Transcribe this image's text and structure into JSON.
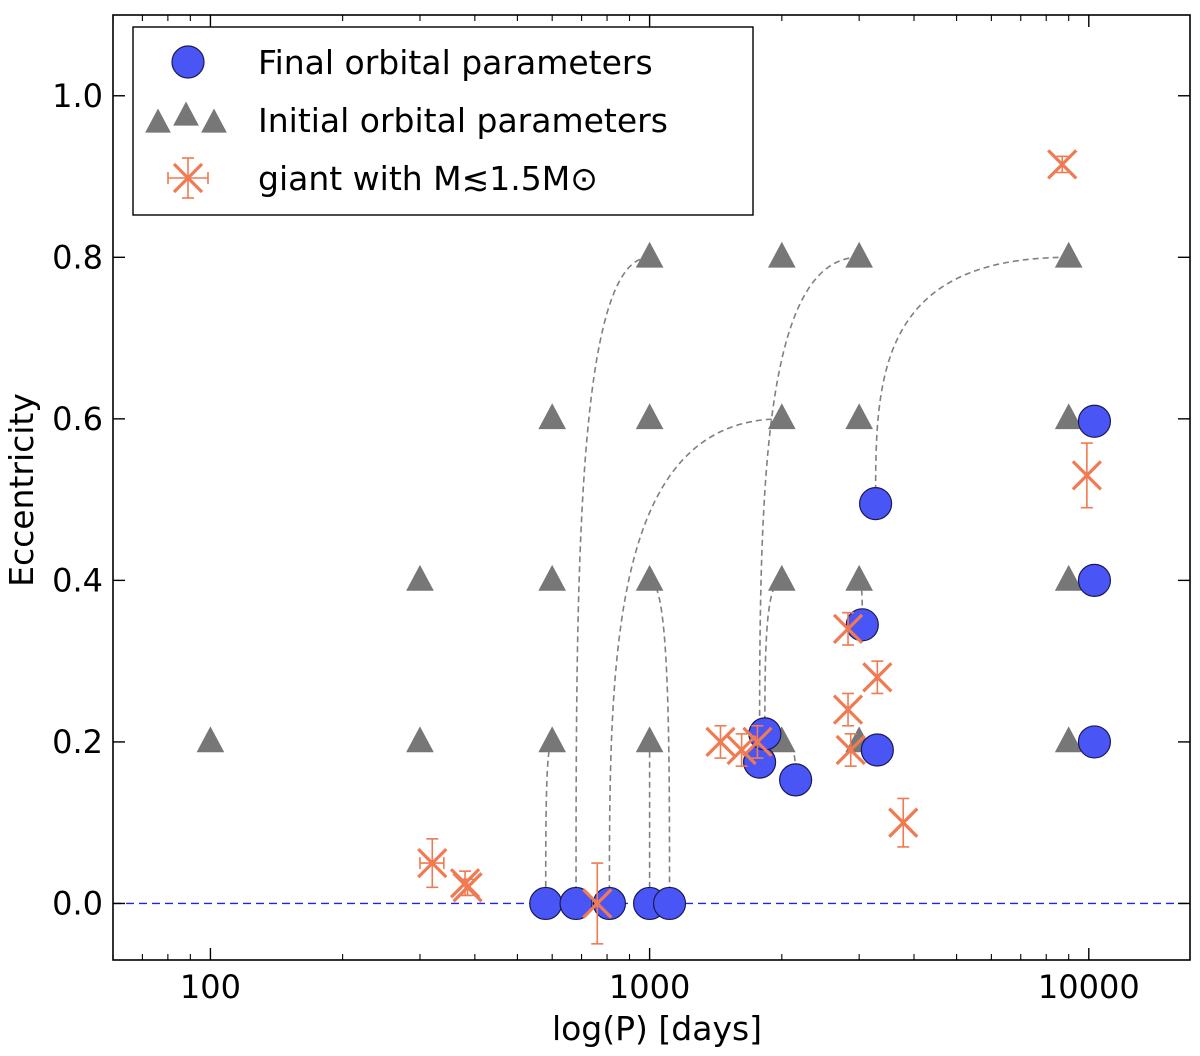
{
  "chart_data": {
    "type": "scatter",
    "title": "",
    "xlabel": "log(P) [days]",
    "ylabel": "Eccentricity",
    "xscale": "log",
    "xlim": [
      60,
      17000
    ],
    "ylim": [
      -0.07,
      1.1
    ],
    "grid": false,
    "legend_position": "top-left",
    "x_ticks": [
      {
        "value": 100,
        "label": "100"
      },
      {
        "value": 1000,
        "label": "1000"
      },
      {
        "value": 10000,
        "label": "10000"
      }
    ],
    "y_ticks": [
      {
        "value": 0.0,
        "label": "0.0"
      },
      {
        "value": 0.2,
        "label": "0.2"
      },
      {
        "value": 0.4,
        "label": "0.4"
      },
      {
        "value": 0.6,
        "label": "0.6"
      },
      {
        "value": 0.8,
        "label": "0.8"
      },
      {
        "value": 1.0,
        "label": "1.0"
      }
    ],
    "reference_line": {
      "y": 0.0,
      "style": "dashed",
      "color": "#2222ee"
    },
    "series": [
      {
        "name": "Final orbital parameters",
        "marker": "circle",
        "color": "#4a55f5",
        "points": [
          {
            "x": 580,
            "y": 0.0
          },
          {
            "x": 680,
            "y": 0.0
          },
          {
            "x": 810,
            "y": 0.0
          },
          {
            "x": 1000,
            "y": 0.0
          },
          {
            "x": 1110,
            "y": 0.0
          },
          {
            "x": 1780,
            "y": 0.175
          },
          {
            "x": 1830,
            "y": 0.21
          },
          {
            "x": 2150,
            "y": 0.153
          },
          {
            "x": 3050,
            "y": 0.345
          },
          {
            "x": 3300,
            "y": 0.19
          },
          {
            "x": 3270,
            "y": 0.495
          },
          {
            "x": 10300,
            "y": 0.597
          },
          {
            "x": 10300,
            "y": 0.4
          },
          {
            "x": 10300,
            "y": 0.2
          }
        ]
      },
      {
        "name": "Initial orbital parameters",
        "marker": "triangle",
        "color": "#777777",
        "points": [
          {
            "x": 100,
            "y": 0.2
          },
          {
            "x": 300,
            "y": 0.2
          },
          {
            "x": 300,
            "y": 0.4
          },
          {
            "x": 600,
            "y": 0.2
          },
          {
            "x": 600,
            "y": 0.4
          },
          {
            "x": 600,
            "y": 0.6
          },
          {
            "x": 1000,
            "y": 0.2
          },
          {
            "x": 1000,
            "y": 0.4
          },
          {
            "x": 1000,
            "y": 0.6
          },
          {
            "x": 1000,
            "y": 0.8
          },
          {
            "x": 2000,
            "y": 0.2
          },
          {
            "x": 2000,
            "y": 0.4
          },
          {
            "x": 2000,
            "y": 0.6
          },
          {
            "x": 2000,
            "y": 0.8
          },
          {
            "x": 3000,
            "y": 0.2
          },
          {
            "x": 3000,
            "y": 0.4
          },
          {
            "x": 3000,
            "y": 0.6
          },
          {
            "x": 3000,
            "y": 0.8
          },
          {
            "x": 9000,
            "y": 0.2
          },
          {
            "x": 9000,
            "y": 0.4
          },
          {
            "x": 9000,
            "y": 0.6
          },
          {
            "x": 9000,
            "y": 0.8
          }
        ]
      },
      {
        "name": "giant with M≲1.5M⊙",
        "marker": "x",
        "color": "#f07a52",
        "points": [
          {
            "x": 320,
            "y": 0.05,
            "yerr": 0.03,
            "xerr": 20
          },
          {
            "x": 380,
            "y": 0.025,
            "yerr": 0.015
          },
          {
            "x": 385,
            "y": 0.02,
            "yerr": 0.01
          },
          {
            "x": 760,
            "y": 0.0,
            "yerr": 0.05
          },
          {
            "x": 1450,
            "y": 0.2,
            "yerr": 0.02
          },
          {
            "x": 1620,
            "y": 0.19,
            "yerr": 0.02
          },
          {
            "x": 1760,
            "y": 0.2,
            "yerr": 0.02
          },
          {
            "x": 2830,
            "y": 0.34,
            "yerr": 0.02
          },
          {
            "x": 2830,
            "y": 0.24,
            "yerr": 0.02
          },
          {
            "x": 2870,
            "y": 0.19,
            "yerr": 0.02
          },
          {
            "x": 3300,
            "y": 0.28,
            "yerr": 0.02
          },
          {
            "x": 3780,
            "y": 0.1,
            "yerr": 0.03
          },
          {
            "x": 8700,
            "y": 0.915,
            "yerr": 0.01
          },
          {
            "x": 9900,
            "y": 0.53,
            "yerr": 0.04
          }
        ]
      }
    ],
    "evolution_tracks": [
      {
        "from": {
          "x": 600,
          "y": 0.2
        },
        "to": {
          "x": 580,
          "y": 0.0
        }
      },
      {
        "from": {
          "x": 1000,
          "y": 0.2
        },
        "to": {
          "x": 1000,
          "y": 0.0
        }
      },
      {
        "from": {
          "x": 1000,
          "y": 0.4
        },
        "to": {
          "x": 1110,
          "y": 0.0
        }
      },
      {
        "from": {
          "x": 1000,
          "y": 0.8
        },
        "to": {
          "x": 680,
          "y": 0.0
        }
      },
      {
        "from": {
          "x": 2000,
          "y": 0.6
        },
        "to": {
          "x": 810,
          "y": 0.0
        }
      },
      {
        "from": {
          "x": 2000,
          "y": 0.2
        },
        "to": {
          "x": 2150,
          "y": 0.153
        }
      },
      {
        "from": {
          "x": 2000,
          "y": 0.4
        },
        "to": {
          "x": 1830,
          "y": 0.21
        }
      },
      {
        "from": {
          "x": 3000,
          "y": 0.8
        },
        "to": {
          "x": 1780,
          "y": 0.175
        }
      },
      {
        "from": {
          "x": 3000,
          "y": 0.4
        },
        "to": {
          "x": 3050,
          "y": 0.345
        }
      },
      {
        "from": {
          "x": 3000,
          "y": 0.2
        },
        "to": {
          "x": 3300,
          "y": 0.19
        }
      },
      {
        "from": {
          "x": 9000,
          "y": 0.8
        },
        "to": {
          "x": 3270,
          "y": 0.495
        }
      },
      {
        "from": {
          "x": 9000,
          "y": 0.6
        },
        "to": {
          "x": 10300,
          "y": 0.597
        }
      },
      {
        "from": {
          "x": 9000,
          "y": 0.4
        },
        "to": {
          "x": 10300,
          "y": 0.4
        }
      },
      {
        "from": {
          "x": 9000,
          "y": 0.2
        },
        "to": {
          "x": 10300,
          "y": 0.2
        }
      }
    ]
  }
}
